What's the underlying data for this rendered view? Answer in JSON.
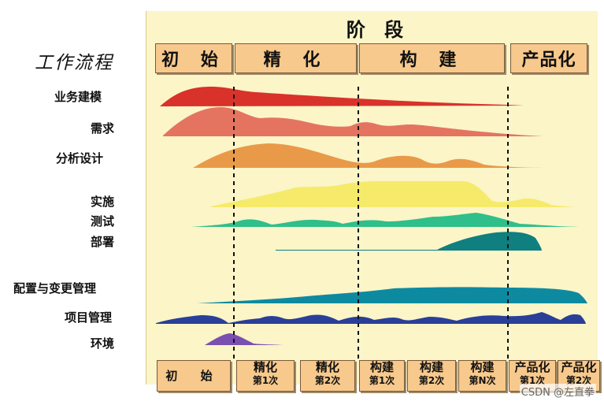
{
  "stage_header": "阶 段",
  "workflow_header": "工作流程",
  "phases": [
    {
      "label": "初 始"
    },
    {
      "label": "精 化"
    },
    {
      "label": "构 建"
    },
    {
      "label": "产品化"
    }
  ],
  "workflows": [
    {
      "label": "业务建模",
      "color": "#d8322a"
    },
    {
      "label": "需求",
      "color": "#e47460"
    },
    {
      "label": "分析设计",
      "color": "#e99a48"
    },
    {
      "label": "实施",
      "color": "#f6ea6a"
    },
    {
      "label": "测试",
      "color": "#2fbf8a"
    },
    {
      "label": "部署",
      "color": "#0f7f80"
    },
    {
      "label": "配置与变更管理",
      "color": "#0e8aa0"
    },
    {
      "label": "项目管理",
      "color": "#2a3f98"
    },
    {
      "label": "环境",
      "color": "#7b4fb0"
    }
  ],
  "iterations": [
    {
      "line1": "初 始",
      "line2": ""
    },
    {
      "line1": "精化",
      "line2": "第1次"
    },
    {
      "line1": "精化",
      "line2": "第2次"
    },
    {
      "line1": "构建",
      "line2": "第1次"
    },
    {
      "line1": "构建",
      "line2": "第2次"
    },
    {
      "line1": "构建",
      "line2": "第N次"
    },
    {
      "line1": "产品化",
      "line2": "第1次"
    },
    {
      "line1": "产品化",
      "line2": "第2次"
    }
  ],
  "watermark": "CSDN @左直拳"
}
